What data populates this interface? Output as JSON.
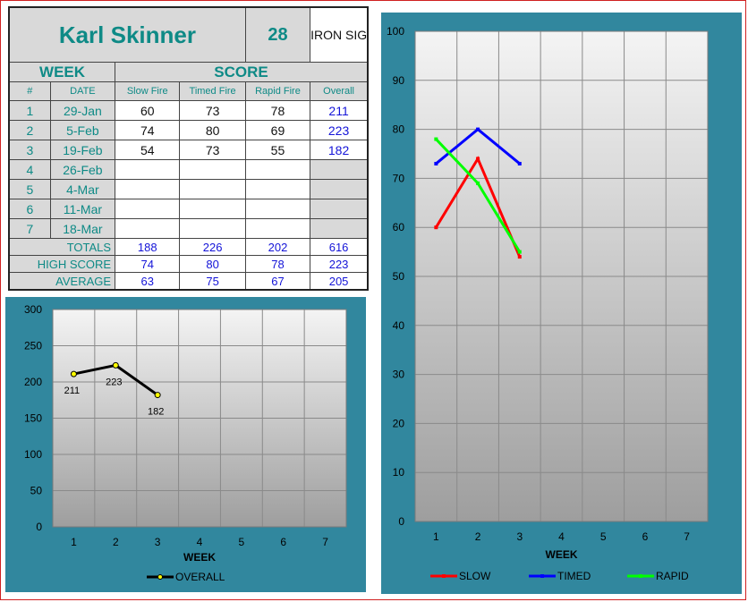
{
  "header": {
    "name": "Karl Skinner",
    "number": "28",
    "category": "IRON SIGHTS"
  },
  "table": {
    "week_header": "WEEK",
    "score_header": "SCORE",
    "columns": [
      "#",
      "DATE",
      "Slow Fire",
      "Timed Fire",
      "Rapid Fire",
      "Overall"
    ],
    "rows": [
      {
        "num": "1",
        "date": "29-Jan",
        "slow": "60",
        "timed": "73",
        "rapid": "78",
        "overall": "211"
      },
      {
        "num": "2",
        "date": "5-Feb",
        "slow": "74",
        "timed": "80",
        "rapid": "69",
        "overall": "223"
      },
      {
        "num": "3",
        "date": "19-Feb",
        "slow": "54",
        "timed": "73",
        "rapid": "55",
        "overall": "182"
      },
      {
        "num": "4",
        "date": "26-Feb",
        "slow": "",
        "timed": "",
        "rapid": "",
        "overall": ""
      },
      {
        "num": "5",
        "date": "4-Mar",
        "slow": "",
        "timed": "",
        "rapid": "",
        "overall": ""
      },
      {
        "num": "6",
        "date": "11-Mar",
        "slow": "",
        "timed": "",
        "rapid": "",
        "overall": ""
      },
      {
        "num": "7",
        "date": "18-Mar",
        "slow": "",
        "timed": "",
        "rapid": "",
        "overall": ""
      }
    ],
    "totals": {
      "label": "TOTALS",
      "slow": "188",
      "timed": "226",
      "rapid": "202",
      "overall": "616"
    },
    "high": {
      "label": "HIGH SCORE",
      "slow": "74",
      "timed": "80",
      "rapid": "78",
      "overall": "223"
    },
    "average": {
      "label": "AVERAGE",
      "slow": "63",
      "timed": "75",
      "rapid": "67",
      "overall": "205"
    }
  },
  "colors": {
    "panel": "#31879e",
    "slow": "#ff0000",
    "timed": "#0000ff",
    "rapid": "#00ff00",
    "overall": "#000000",
    "overall_marker": "#ffff00"
  },
  "chart_data": [
    {
      "type": "line",
      "x": [
        1,
        2,
        3,
        4,
        5,
        6,
        7
      ],
      "xlabel": "WEEK",
      "ylim": [
        0,
        300
      ],
      "yticks": [
        0,
        50,
        100,
        150,
        200,
        250,
        300
      ],
      "grid": true,
      "legend": "bottom",
      "series": [
        {
          "name": "OVERALL",
          "x": [
            1,
            2,
            3
          ],
          "values": [
            211,
            223,
            182
          ],
          "data_labels": [
            "211",
            "223",
            "182"
          ],
          "color": "#000000"
        }
      ]
    },
    {
      "type": "line",
      "x": [
        1,
        2,
        3,
        4,
        5,
        6,
        7
      ],
      "xlabel": "WEEK",
      "ylim": [
        0,
        100
      ],
      "yticks": [
        0,
        10,
        20,
        30,
        40,
        50,
        60,
        70,
        80,
        90,
        100
      ],
      "grid": true,
      "legend": "bottom",
      "series": [
        {
          "name": "SLOW",
          "x": [
            1,
            2,
            3
          ],
          "values": [
            60,
            74,
            54
          ],
          "color": "#ff0000"
        },
        {
          "name": "TIMED",
          "x": [
            1,
            2,
            3
          ],
          "values": [
            73,
            80,
            73
          ],
          "color": "#0000ff"
        },
        {
          "name": "RAPID",
          "x": [
            1,
            2,
            3
          ],
          "values": [
            78,
            69,
            55
          ],
          "color": "#00ff00"
        }
      ]
    }
  ]
}
